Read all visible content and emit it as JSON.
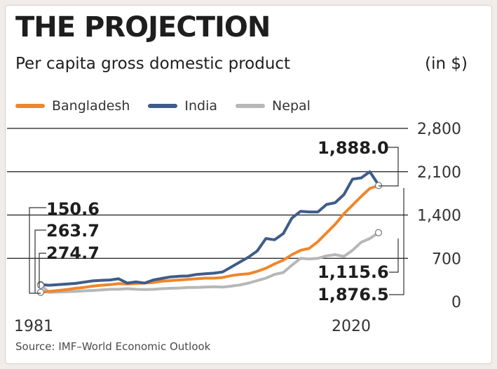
{
  "colors": {
    "bangladesh": "#f0862c",
    "india": "#3f5c89",
    "nepal": "#b7b7b7",
    "frame": "#ffffff",
    "page_bg": "#f1ebe9"
  },
  "chart_data": {
    "type": "line",
    "title": "THE PROJECTION",
    "subtitle": "Per capita gross domestic product",
    "unit": "(in $)",
    "source": "Source: IMF–World Economic Outlook",
    "x": [
      1981,
      1982,
      1983,
      1984,
      1985,
      1986,
      1987,
      1988,
      1989,
      1990,
      1991,
      1992,
      1993,
      1994,
      1995,
      1996,
      1997,
      1998,
      1999,
      2000,
      2001,
      2002,
      2003,
      2004,
      2005,
      2006,
      2007,
      2008,
      2009,
      2010,
      2011,
      2012,
      2013,
      2014,
      2015,
      2016,
      2017,
      2018,
      2019,
      2020
    ],
    "xtick_labels": [
      "1981",
      "2020"
    ],
    "ylim": [
      0,
      2800
    ],
    "yticks": [
      0,
      700,
      1400,
      2100,
      2800
    ],
    "ytick_labels": [
      "0",
      "700",
      "1,400",
      "2,100",
      "2,800"
    ],
    "grid": true,
    "legend_position": "top-left",
    "series": [
      {
        "name": "Bangladesh",
        "color_key": "bangladesh",
        "values": [
          150.6,
          165,
          180,
          195,
          215,
          230,
          250,
          265,
          275,
          290,
          285,
          295,
          300,
          310,
          330,
          340,
          350,
          360,
          370,
          380,
          380,
          390,
          420,
          440,
          450,
          490,
          540,
          610,
          670,
          760,
          830,
          860,
          970,
          1110,
          1250,
          1420,
          1560,
          1700,
          1830,
          1876.5
        ]
      },
      {
        "name": "India",
        "color_key": "india",
        "values": [
          274.7,
          265,
          275,
          285,
          295,
          315,
          335,
          345,
          350,
          370,
          300,
          320,
          300,
          350,
          375,
          400,
          410,
          415,
          440,
          450,
          460,
          480,
          560,
          640,
          720,
          820,
          1020,
          1000,
          1100,
          1350,
          1460,
          1450,
          1450,
          1570,
          1600,
          1730,
          1980,
          2000,
          2100,
          1888.0
        ]
      },
      {
        "name": "Nepal",
        "color_key": "nepal",
        "values": [
          263.7,
          150,
          155,
          160,
          165,
          175,
          180,
          190,
          200,
          200,
          210,
          200,
          195,
          200,
          210,
          215,
          220,
          230,
          230,
          235,
          240,
          235,
          250,
          270,
          300,
          340,
          380,
          440,
          470,
          590,
          700,
          690,
          700,
          740,
          760,
          730,
          830,
          960,
          1020,
          1115.6
        ]
      }
    ],
    "annotations": [
      {
        "text": "150.6",
        "series": "Bangladesh",
        "point": "start"
      },
      {
        "text": "263.7",
        "series": "Nepal",
        "point": "start"
      },
      {
        "text": "274.7",
        "series": "India",
        "point": "start"
      },
      {
        "text": "1,888.0",
        "series": "India",
        "point": "end"
      },
      {
        "text": "1,115.6",
        "series": "Nepal",
        "point": "end"
      },
      {
        "text": "1,876.5",
        "series": "Bangladesh",
        "point": "end"
      }
    ]
  }
}
